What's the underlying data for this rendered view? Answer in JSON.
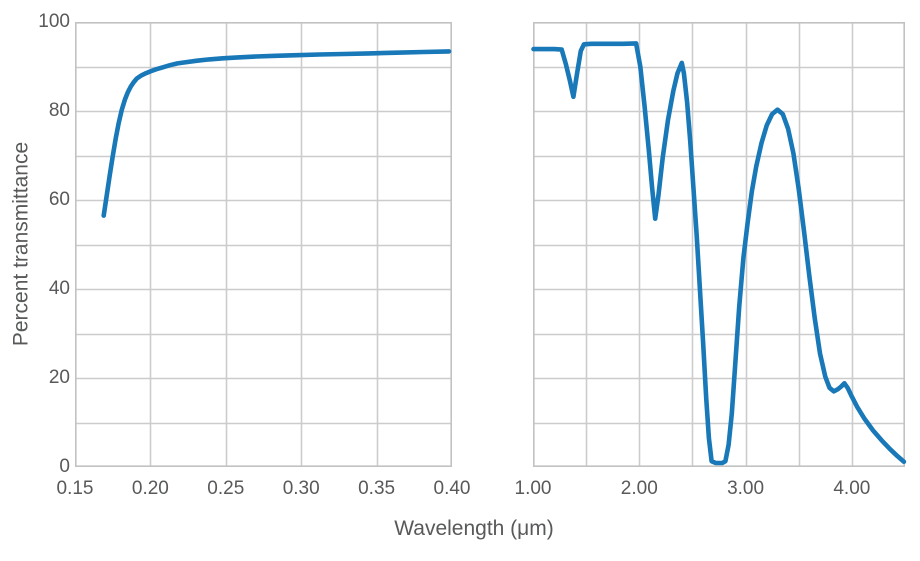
{
  "figure": {
    "ylabel": "Percent transmittance",
    "xlabel": "Wavelength (μm)"
  },
  "colors": {
    "line": "#1878b8",
    "grid": "#cccccc",
    "border": "#c2c2c2",
    "text": "#58595b",
    "background": "#ffffff"
  },
  "chart_data": [
    {
      "type": "line",
      "panel": "uv",
      "title": "",
      "xlabel": "Wavelength (μm)",
      "ylabel": "Percent transmittance",
      "xlim": [
        0.15,
        0.4
      ],
      "ylim": [
        0,
        100
      ],
      "grid": true,
      "x_gridline_step": 0.05,
      "y_gridline_step": 10,
      "x_tick_values": [
        0.15,
        0.2,
        0.25,
        0.3,
        0.35,
        0.4
      ],
      "x_tick_labels": [
        "0.15",
        "0.20",
        "0.25",
        "0.30",
        "0.35",
        "0.40"
      ],
      "y_tick_values": [
        0,
        20,
        40,
        60,
        80,
        100
      ],
      "y_tick_labels": [
        "0",
        "20",
        "40",
        "60",
        "80",
        "100"
      ],
      "series": [
        {
          "name": "transmittance",
          "x": [
            0.169,
            0.171,
            0.173,
            0.175,
            0.177,
            0.179,
            0.181,
            0.183,
            0.185,
            0.187,
            0.189,
            0.191,
            0.194,
            0.197,
            0.2,
            0.204,
            0.208,
            0.213,
            0.218,
            0.224,
            0.231,
            0.239,
            0.248,
            0.258,
            0.27,
            0.283,
            0.297,
            0.312,
            0.328,
            0.345,
            0.363,
            0.381,
            0.398
          ],
          "y": [
            56.5,
            61.0,
            65.5,
            69.8,
            73.8,
            77.3,
            80.2,
            82.5,
            84.2,
            85.5,
            86.5,
            87.3,
            88.0,
            88.5,
            88.9,
            89.4,
            89.8,
            90.3,
            90.7,
            91.0,
            91.3,
            91.6,
            91.85,
            92.05,
            92.25,
            92.4,
            92.55,
            92.7,
            92.8,
            92.95,
            93.1,
            93.25,
            93.4
          ]
        }
      ]
    },
    {
      "type": "line",
      "panel": "ir",
      "title": "",
      "xlabel": "Wavelength (μm)",
      "ylabel": "Percent transmittance",
      "xlim": [
        1.0,
        4.5
      ],
      "ylim": [
        0,
        100
      ],
      "grid": true,
      "x_gridline_step": 0.5,
      "y_gridline_step": 10,
      "x_tick_values": [
        1.0,
        2.0,
        3.0,
        4.0
      ],
      "x_tick_labels": [
        "1.00",
        "2.00",
        "3.00",
        "4.00"
      ],
      "y_tick_values": [
        0,
        20,
        40,
        60,
        80,
        100
      ],
      "y_tick_labels": [
        "0",
        "20",
        "40",
        "60",
        "80",
        "100"
      ],
      "series": [
        {
          "name": "transmittance",
          "x": [
            1.005,
            1.1,
            1.2,
            1.27,
            1.31,
            1.345,
            1.38,
            1.415,
            1.45,
            1.48,
            1.55,
            1.7,
            1.85,
            1.97,
            2.01,
            2.05,
            2.09,
            2.12,
            2.15,
            2.18,
            2.22,
            2.27,
            2.32,
            2.36,
            2.4,
            2.42,
            2.45,
            2.48,
            2.51,
            2.54,
            2.57,
            2.6,
            2.63,
            2.655,
            2.68,
            2.72,
            2.78,
            2.81,
            2.84,
            2.87,
            2.9,
            2.94,
            2.98,
            3.02,
            3.06,
            3.1,
            3.15,
            3.2,
            3.25,
            3.3,
            3.35,
            3.4,
            3.45,
            3.5,
            3.55,
            3.6,
            3.65,
            3.7,
            3.75,
            3.79,
            3.83,
            3.87,
            3.9,
            3.93,
            3.96,
            4.0,
            4.05,
            4.12,
            4.2,
            4.28,
            4.36,
            4.43,
            4.49
          ],
          "y": [
            93.9,
            93.9,
            93.9,
            93.8,
            90.5,
            87.0,
            83.2,
            88.5,
            93.5,
            95.0,
            95.1,
            95.1,
            95.1,
            95.2,
            90.0,
            81.0,
            71.0,
            63.0,
            55.8,
            61.0,
            69.5,
            78.0,
            84.5,
            88.5,
            90.8,
            88.5,
            82.0,
            73.0,
            62.5,
            52.0,
            40.0,
            28.0,
            15.5,
            6.5,
            1.3,
            0.9,
            0.9,
            1.3,
            5.0,
            12.0,
            22.0,
            36.0,
            47.0,
            55.0,
            62.0,
            67.5,
            72.8,
            76.8,
            79.3,
            80.3,
            79.3,
            76.0,
            70.5,
            62.5,
            53.0,
            43.0,
            33.5,
            25.5,
            20.3,
            17.8,
            17.0,
            17.5,
            18.1,
            18.8,
            17.8,
            15.8,
            13.5,
            10.8,
            8.2,
            6.0,
            4.0,
            2.4,
            1.2
          ]
        }
      ]
    }
  ]
}
